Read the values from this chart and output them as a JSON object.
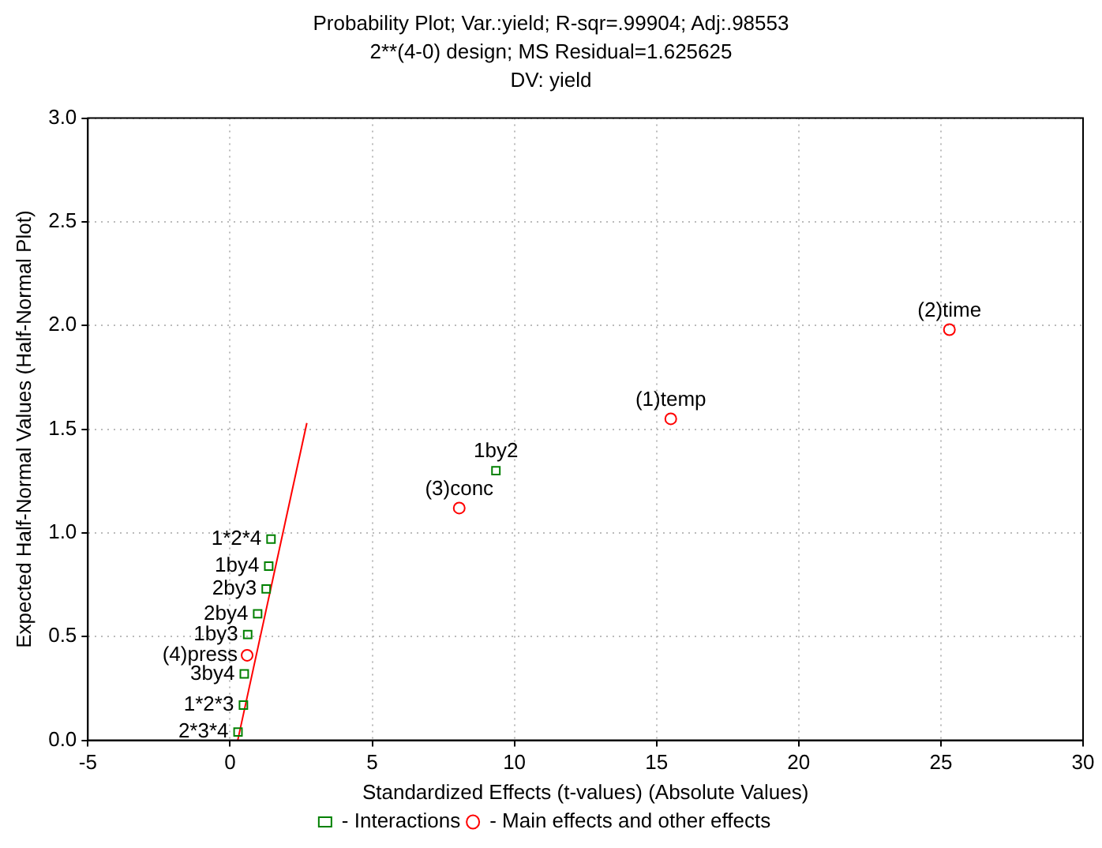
{
  "chart_data": {
    "type": "scatter",
    "title": "Probability Plot; Var.:yield; R-sqr=.99904; Adj:.98553",
    "subtitle": "2**(4-0) design; MS Residual=1.625625\nDV: yield",
    "xlabel": "Standardized Effects (t-values) (Absolute Values)",
    "ylabel": "Expected Half-Normal Values (Half-Normal Plot)",
    "xlim": [
      -5,
      30
    ],
    "xticks": [
      -5,
      0,
      5,
      10,
      15,
      20,
      25,
      30
    ],
    "ylim": [
      0,
      3
    ],
    "yticks": [
      {
        "value": 0,
        "label": "0.0"
      },
      {
        "value": 0.5,
        "label": "0.5"
      },
      {
        "value": 1,
        "label": "1.0"
      },
      {
        "value": 1.5,
        "label": "1.5"
      },
      {
        "value": 2,
        "label": "2.0"
      },
      {
        "value": 2.5,
        "label": "2.5"
      },
      {
        "value": 3,
        "label": "3.0"
      }
    ],
    "grid": true,
    "legend": "bottom",
    "series": [
      {
        "name": "- Interactions",
        "color": "#008000",
        "marker": "square",
        "x": [
          9.35,
          1.44,
          1.36,
          1.27,
          0.97,
          0.62,
          0.5,
          0.47,
          0.28
        ],
        "values": [
          1.3,
          0.97,
          0.84,
          0.73,
          0.61,
          0.51,
          0.32,
          0.17,
          0.04
        ]
      },
      {
        "name": "- Main effects and other effects",
        "color": "#ff0000",
        "marker": "circle",
        "x": [
          25.3,
          15.5,
          8.06,
          0.6
        ],
        "values": [
          1.98,
          1.55,
          1.12,
          0.41
        ]
      },
      {
        "type": "line",
        "color": "#ff0000",
        "marker": "none",
        "x": [
          0.27,
          2.7
        ],
        "values": [
          0,
          1.53
        ]
      }
    ],
    "annotations": [
      {
        "text": "(2)time",
        "x": 25.3,
        "y": 1.98
      },
      {
        "text": "(1)temp",
        "x": 15.5,
        "y": 1.55
      },
      {
        "text": "1by2",
        "x": 9.35,
        "y": 1.3
      },
      {
        "text": "(3)conc",
        "x": 8.06,
        "y": 1.12
      },
      {
        "text": "1*2*4",
        "x": 1.44,
        "y": 0.97
      },
      {
        "text": "1by4",
        "x": 1.36,
        "y": 0.84
      },
      {
        "text": "2by3",
        "x": 1.27,
        "y": 0.73
      },
      {
        "text": "2by4",
        "x": 0.97,
        "y": 0.61
      },
      {
        "text": "1by3",
        "x": 0.62,
        "y": 0.51
      },
      {
        "text": "(4)press",
        "x": 0.6,
        "y": 0.41
      },
      {
        "text": "3by4",
        "x": 0.5,
        "y": 0.32
      },
      {
        "text": "1*2*3",
        "x": 0.47,
        "y": 0.17
      },
      {
        "text": "2*3*4",
        "x": 0.28,
        "y": 0.04
      }
    ]
  }
}
